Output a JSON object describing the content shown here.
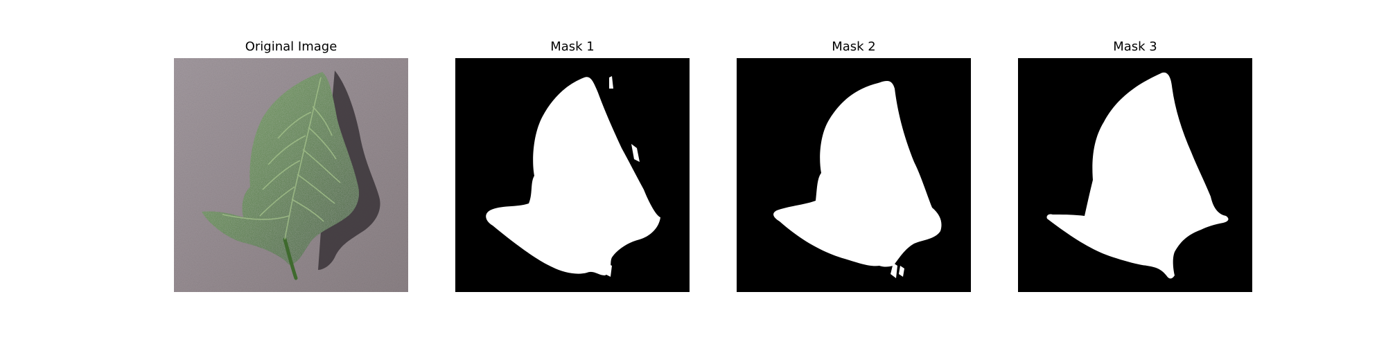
{
  "figure": {
    "panels": [
      {
        "title": "Original Image",
        "kind": "photo",
        "subject": "leaf-photo"
      },
      {
        "title": "Mask 1",
        "kind": "mask"
      },
      {
        "title": "Mask 2",
        "kind": "mask"
      },
      {
        "title": "Mask 3",
        "kind": "mask"
      }
    ],
    "colors": {
      "background": "#ffffff",
      "mask_background": "#000000",
      "mask_foreground": "#ffffff",
      "leaf_green": "#4f7a3a",
      "leaf_dark": "#2c4a22",
      "leaf_highlight": "#8fae78",
      "surface": "#9a8f93",
      "shadow": "#3a3438"
    }
  }
}
